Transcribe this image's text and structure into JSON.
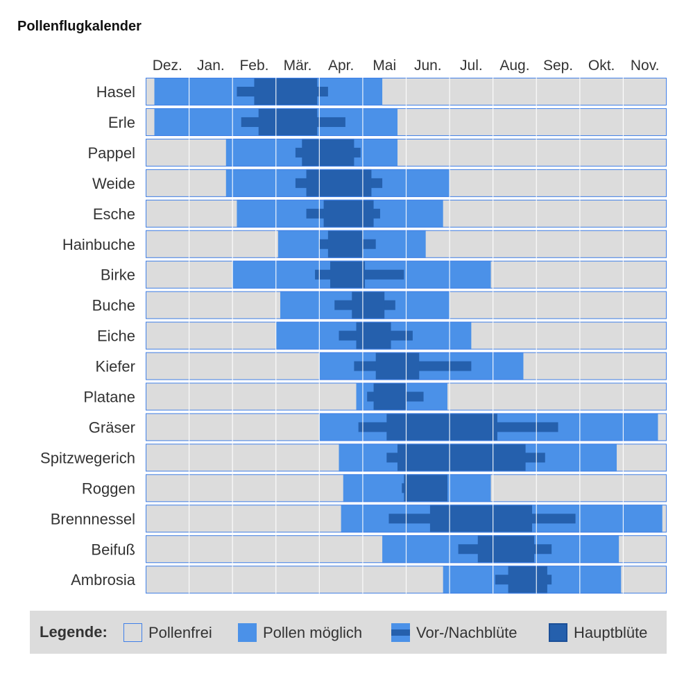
{
  "title": "Pollenflugkalender",
  "legend": {
    "label": "Legende:",
    "items": [
      {
        "key": "free",
        "label": "Pollenfrei"
      },
      {
        "key": "possible",
        "label": "Pollen möglich"
      },
      {
        "key": "pre",
        "label": "Vor-/Nachblüte"
      },
      {
        "key": "main",
        "label": "Hauptblüte"
      }
    ]
  },
  "colors": {
    "free": "#dcdcdc",
    "possible": "#4b91e8",
    "pre": "#2560ad",
    "main": "#2560ad",
    "border": "#3f7fe8",
    "grid": "#ffffff"
  },
  "chart_data": {
    "type": "table",
    "x_unit": "month index (0 = Dez., 12 = end of Nov.)",
    "months": [
      "Dez.",
      "Jan.",
      "Feb.",
      "Mär.",
      "Apr.",
      "Mai",
      "Jun.",
      "Jul.",
      "Aug.",
      "Sep.",
      "Okt.",
      "Nov."
    ],
    "rows": [
      {
        "name": "Hasel",
        "possible": [
          0.2,
          5.45
        ],
        "pre": [
          2.1,
          4.2
        ],
        "main": [
          2.5,
          3.95
        ]
      },
      {
        "name": "Erle",
        "possible": [
          0.2,
          5.8
        ],
        "pre": [
          2.2,
          4.6
        ],
        "main": [
          2.6,
          3.95
        ]
      },
      {
        "name": "Pappel",
        "possible": [
          1.85,
          5.8
        ],
        "pre": [
          3.45,
          4.95
        ],
        "main": [
          3.6,
          4.8
        ]
      },
      {
        "name": "Weide",
        "possible": [
          1.85,
          7.0
        ],
        "pre": [
          3.45,
          5.45
        ],
        "main": [
          3.7,
          5.2
        ]
      },
      {
        "name": "Esche",
        "possible": [
          2.1,
          6.85
        ],
        "pre": [
          3.7,
          5.4
        ],
        "main": [
          4.1,
          5.25
        ]
      },
      {
        "name": "Hainbuche",
        "possible": [
          3.05,
          6.45
        ],
        "pre": [
          4.0,
          5.3
        ],
        "main": [
          4.2,
          5.0
        ]
      },
      {
        "name": "Birke",
        "possible": [
          2.0,
          7.95
        ],
        "pre": [
          3.9,
          5.95
        ],
        "main": [
          4.25,
          5.05
        ]
      },
      {
        "name": "Buche",
        "possible": [
          3.1,
          7.0
        ],
        "pre": [
          4.35,
          5.75
        ],
        "main": [
          4.75,
          5.5
        ]
      },
      {
        "name": "Eiche",
        "possible": [
          3.0,
          7.5
        ],
        "pre": [
          4.45,
          6.15
        ],
        "main": [
          4.85,
          5.65
        ]
      },
      {
        "name": "Kiefer",
        "possible": [
          4.0,
          8.7
        ],
        "pre": [
          4.8,
          7.5
        ],
        "main": [
          5.3,
          6.3
        ]
      },
      {
        "name": "Platane",
        "possible": [
          4.85,
          6.95
        ],
        "pre": [
          5.1,
          6.4
        ],
        "main": [
          5.25,
          6.0
        ]
      },
      {
        "name": "Gräser",
        "possible": [
          4.0,
          11.8
        ],
        "pre": [
          4.9,
          9.5
        ],
        "main": [
          5.55,
          8.1
        ]
      },
      {
        "name": "Spitzwegerich",
        "possible": [
          4.45,
          10.85
        ],
        "pre": [
          5.55,
          9.2
        ],
        "main": [
          5.8,
          8.75
        ]
      },
      {
        "name": "Roggen",
        "possible": [
          4.55,
          7.95
        ],
        "pre": [
          5.9,
          6.95
        ],
        "main": [
          5.95,
          6.95
        ]
      },
      {
        "name": "Brennnessel",
        "possible": [
          4.5,
          11.9
        ],
        "pre": [
          5.6,
          9.9
        ],
        "main": [
          6.55,
          8.9
        ]
      },
      {
        "name": "Beifuß",
        "possible": [
          5.45,
          10.9
        ],
        "pre": [
          7.2,
          9.35
        ],
        "main": [
          7.65,
          8.95
        ]
      },
      {
        "name": "Ambrosia",
        "possible": [
          6.85,
          10.95
        ],
        "pre": [
          8.05,
          9.35
        ],
        "main": [
          8.35,
          9.25
        ]
      }
    ]
  }
}
